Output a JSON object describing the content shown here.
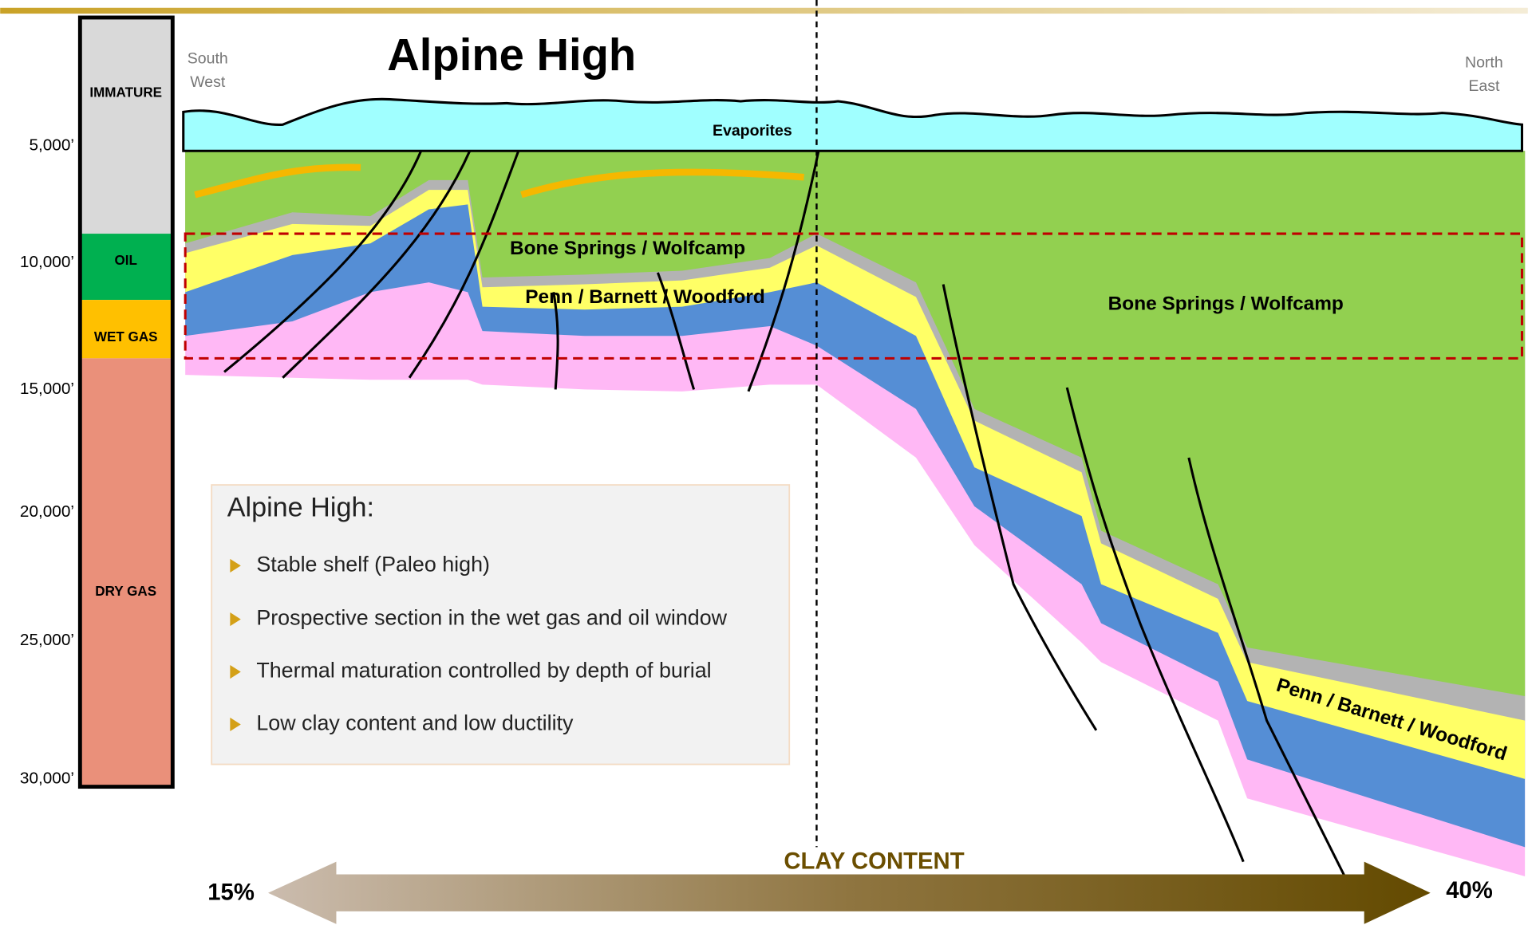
{
  "title": "Alpine High",
  "directions": {
    "left": [
      "South",
      "West"
    ],
    "right": [
      "North",
      "East"
    ]
  },
  "depth_labels": [
    "5,000’",
    "10,000’",
    "15,000’",
    "20,000’",
    "25,000’",
    "30,000’"
  ],
  "maturity_zones": [
    "IMMATURE",
    "OIL",
    "WET GAS",
    "DRY GAS"
  ],
  "layers": {
    "evaporites": "Evaporites",
    "left_upper": "Bone Springs / Wolfcamp",
    "left_lower": "Penn / Barnett / Woodford",
    "right_upper": "Bone Springs / Wolfcamp",
    "right_lower": "Penn / Barnett / Woodford"
  },
  "info_box": {
    "heading": "Alpine High:",
    "bullets": [
      "Stable shelf (Paleo high)",
      "Prospective section in the wet gas and oil window",
      "Thermal maturation controlled by depth of burial",
      "Low clay content and low ductility"
    ]
  },
  "clay": {
    "label": "CLAY CONTENT",
    "low": "15%",
    "high": "40%"
  }
}
